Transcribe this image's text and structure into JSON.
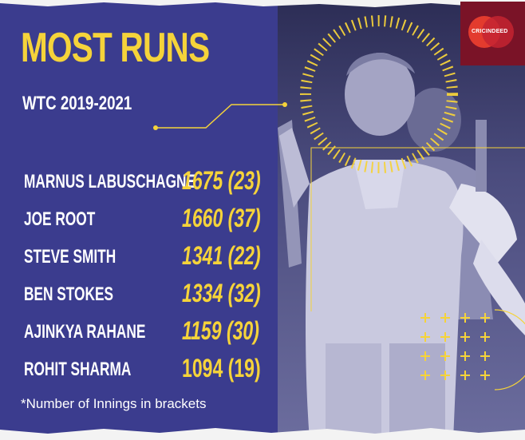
{
  "graphic": {
    "title": "MOST RUNS",
    "subtitle": "WTC 2019-2021",
    "footnote": "*Number of Innings in brackets",
    "logo_text": "CRICINDEED",
    "colors": {
      "panel_blue": "#3b3c8e",
      "accent_yellow": "#f5d33a",
      "text_white": "#ffffff",
      "logo_red": "#7a1327"
    },
    "players": [
      {
        "name": "MARNUS LABUSCHAGNE",
        "stat": "1675 (23)"
      },
      {
        "name": "JOE ROOT",
        "stat": "1660 (37)"
      },
      {
        "name": "STEVE SMITH",
        "stat": "1341 (22)"
      },
      {
        "name": "BEN STOKES",
        "stat": "1334 (32)"
      },
      {
        "name": "AJINKYA RAHANE",
        "stat": "1159 (30)"
      },
      {
        "name": "ROHIT SHARMA",
        "stat": "1094 (19)"
      }
    ]
  }
}
